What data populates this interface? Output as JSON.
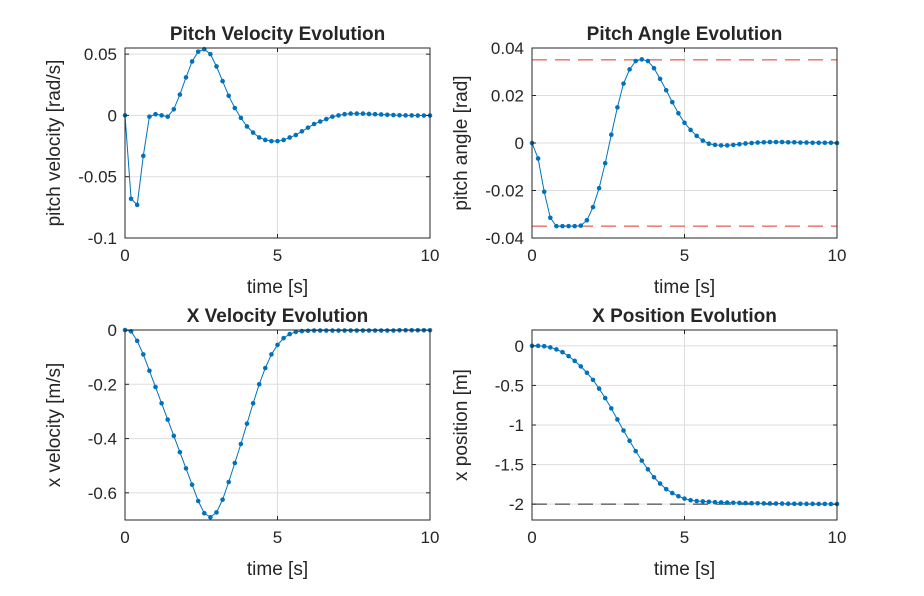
{
  "colors": {
    "series": "#0072bd",
    "limit_red": "#e3342f",
    "limit_black": "#262626"
  },
  "chart_data": [
    {
      "type": "line",
      "title": "Pitch Velocity Evolution",
      "xlabel": "time [s]",
      "ylabel": "pitch velocity [rad/s]",
      "xlim": [
        0,
        10
      ],
      "ylim": [
        -0.1,
        0.055
      ],
      "xticks": [
        0,
        5,
        10
      ],
      "xtick_labels": [
        "0",
        "5",
        "10"
      ],
      "yticks": [
        -0.1,
        -0.05,
        0,
        0.05
      ],
      "ytick_labels": [
        "-0.1",
        "-0.05",
        "0",
        "0.05"
      ],
      "grid": true,
      "series": [
        {
          "marker": "dot",
          "x": [
            0,
            0.2,
            0.4,
            0.6,
            0.8,
            1.0,
            1.2,
            1.4,
            1.6,
            1.8,
            2.0,
            2.2,
            2.4,
            2.6,
            2.8,
            3.0,
            3.2,
            3.4,
            3.6,
            3.8,
            4.0,
            4.2,
            4.4,
            4.6,
            4.8,
            5.0,
            5.2,
            5.4,
            5.6,
            5.8,
            6.0,
            6.2,
            6.4,
            6.6,
            6.8,
            7.0,
            7.2,
            7.4,
            7.6,
            7.8,
            8.0,
            8.2,
            8.4,
            8.6,
            8.8,
            9.0,
            9.2,
            9.4,
            9.6,
            9.8,
            10.0
          ],
          "y": [
            0,
            -0.068,
            -0.073,
            -0.033,
            -0.001,
            0.001,
            0,
            -0.001,
            0.005,
            0.017,
            0.031,
            0.044,
            0.052,
            0.054,
            0.05,
            0.04,
            0.028,
            0.016,
            0.006,
            -0.002,
            -0.009,
            -0.014,
            -0.018,
            -0.02,
            -0.021,
            -0.021,
            -0.02,
            -0.018,
            -0.016,
            -0.013,
            -0.01,
            -0.007,
            -0.005,
            -0.003,
            -0.001,
            0,
            0.001,
            0.0015,
            0.0015,
            0.0015,
            0.0012,
            0.001,
            0.0008,
            0.0005,
            0.0003,
            0.0001,
            0,
            0,
            -0.0001,
            -0.0001,
            -0.0001
          ]
        }
      ],
      "hlines": []
    },
    {
      "type": "line",
      "title": "Pitch Angle Evolution",
      "xlabel": "time [s]",
      "ylabel": "pitch angle [rad]",
      "xlim": [
        0,
        10
      ],
      "ylim": [
        -0.04,
        0.04
      ],
      "xticks": [
        0,
        5,
        10
      ],
      "xtick_labels": [
        "0",
        "5",
        "10"
      ],
      "yticks": [
        -0.04,
        -0.02,
        0,
        0.02,
        0.04
      ],
      "ytick_labels": [
        "-0.04",
        "-0.02",
        "0",
        "0.02",
        "0.04"
      ],
      "grid": true,
      "series": [
        {
          "marker": "dot",
          "x": [
            0,
            0.2,
            0.4,
            0.6,
            0.8,
            1.0,
            1.2,
            1.4,
            1.6,
            1.8,
            2.0,
            2.2,
            2.4,
            2.6,
            2.8,
            3.0,
            3.2,
            3.4,
            3.6,
            3.8,
            4.0,
            4.2,
            4.4,
            4.6,
            4.8,
            5.0,
            5.2,
            5.4,
            5.6,
            5.8,
            6.0,
            6.2,
            6.4,
            6.6,
            6.8,
            7.0,
            7.2,
            7.4,
            7.6,
            7.8,
            8.0,
            8.2,
            8.4,
            8.6,
            8.8,
            9.0,
            9.2,
            9.4,
            9.6,
            9.8,
            10.0
          ],
          "y": [
            0,
            -0.0065,
            -0.0205,
            -0.0315,
            -0.035,
            -0.035,
            -0.035,
            -0.035,
            -0.0348,
            -0.0325,
            -0.027,
            -0.019,
            -0.0085,
            0.0035,
            0.015,
            0.025,
            0.031,
            0.0345,
            0.0352,
            0.0345,
            0.0315,
            0.027,
            0.0222,
            0.0172,
            0.0125,
            0.0085,
            0.0055,
            0.003,
            0.001,
            -0.0003,
            -0.0008,
            -0.001,
            -0.001,
            -0.0008,
            -0.0005,
            -0.0002,
            0,
            0.0002,
            0.0003,
            0.0004,
            0.0004,
            0.0004,
            0.0003,
            0.0003,
            0.0002,
            0.0002,
            0.0001,
            0.0001,
            0.0001,
            0.0001,
            0
          ]
        }
      ],
      "hlines": [
        {
          "y": 0.035,
          "color": "#e3342f"
        },
        {
          "y": -0.035,
          "color": "#e3342f"
        }
      ]
    },
    {
      "type": "line",
      "title": "X Velocity Evolution",
      "xlabel": "time [s]",
      "ylabel": "x velocity [m/s]",
      "xlim": [
        0,
        10
      ],
      "ylim": [
        -0.7,
        0
      ],
      "xticks": [
        0,
        5,
        10
      ],
      "xtick_labels": [
        "0",
        "5",
        "10"
      ],
      "yticks": [
        -0.6,
        -0.4,
        -0.2,
        0
      ],
      "ytick_labels": [
        "-0.6",
        "-0.4",
        "-0.2",
        "0"
      ],
      "grid": true,
      "series": [
        {
          "marker": "dot",
          "x": [
            0,
            0.2,
            0.4,
            0.6,
            0.8,
            1.0,
            1.2,
            1.4,
            1.6,
            1.8,
            2.0,
            2.2,
            2.4,
            2.6,
            2.8,
            3.0,
            3.2,
            3.4,
            3.6,
            3.8,
            4.0,
            4.2,
            4.4,
            4.6,
            4.8,
            5.0,
            5.2,
            5.4,
            5.6,
            5.8,
            6.0,
            6.2,
            6.4,
            6.6,
            6.8,
            7.0,
            7.2,
            7.4,
            7.6,
            7.8,
            8.0,
            8.2,
            8.4,
            8.6,
            8.8,
            9.0,
            9.2,
            9.4,
            9.6,
            9.8,
            10.0
          ],
          "y": [
            0,
            -0.005,
            -0.04,
            -0.09,
            -0.15,
            -0.21,
            -0.27,
            -0.33,
            -0.39,
            -0.45,
            -0.51,
            -0.57,
            -0.63,
            -0.675,
            -0.69,
            -0.672,
            -0.625,
            -0.56,
            -0.49,
            -0.42,
            -0.345,
            -0.27,
            -0.2,
            -0.14,
            -0.09,
            -0.055,
            -0.03,
            -0.015,
            -0.007,
            -0.004,
            -0.003,
            -0.002,
            -0.002,
            -0.002,
            -0.002,
            -0.002,
            -0.002,
            -0.002,
            -0.002,
            -0.002,
            -0.002,
            -0.002,
            -0.002,
            -0.002,
            -0.002,
            -0.001,
            -0.001,
            -0.001,
            -0.001,
            -0.001,
            -0.001
          ]
        }
      ],
      "hlines": []
    },
    {
      "type": "line",
      "title": "X Position Evolution",
      "xlabel": "time [s]",
      "ylabel": "x position [m]",
      "xlim": [
        0,
        10
      ],
      "ylim": [
        -2.2,
        0.2
      ],
      "xticks": [
        0,
        5,
        10
      ],
      "xtick_labels": [
        "0",
        "5",
        "10"
      ],
      "yticks": [
        -2,
        -1.5,
        -1,
        -0.5,
        0
      ],
      "ytick_labels": [
        "-2",
        "-1.5",
        "-1",
        "-0.5",
        "0"
      ],
      "grid": true,
      "series": [
        {
          "marker": "dot",
          "x": [
            0,
            0.2,
            0.4,
            0.6,
            0.8,
            1.0,
            1.2,
            1.4,
            1.6,
            1.8,
            2.0,
            2.2,
            2.4,
            2.6,
            2.8,
            3.0,
            3.2,
            3.4,
            3.6,
            3.8,
            4.0,
            4.2,
            4.4,
            4.6,
            4.8,
            5.0,
            5.2,
            5.4,
            5.6,
            5.8,
            6.0,
            6.2,
            6.4,
            6.6,
            6.8,
            7.0,
            7.2,
            7.4,
            7.6,
            7.8,
            8.0,
            8.2,
            8.4,
            8.6,
            8.8,
            9.0,
            9.2,
            9.4,
            9.6,
            9.8,
            10.0
          ],
          "y": [
            0,
            0,
            -0.005,
            -0.02,
            -0.045,
            -0.08,
            -0.13,
            -0.19,
            -0.26,
            -0.34,
            -0.43,
            -0.54,
            -0.66,
            -0.79,
            -0.93,
            -1.07,
            -1.2,
            -1.33,
            -1.45,
            -1.56,
            -1.66,
            -1.74,
            -1.81,
            -1.86,
            -1.9,
            -1.93,
            -1.95,
            -1.96,
            -1.965,
            -1.97,
            -1.975,
            -1.978,
            -1.98,
            -1.982,
            -1.984,
            -1.986,
            -1.988,
            -1.989,
            -1.99,
            -1.991,
            -1.992,
            -1.993,
            -1.994,
            -1.995,
            -1.995,
            -1.996,
            -1.996,
            -1.997,
            -1.997,
            -1.998,
            -1.998
          ]
        }
      ],
      "hlines": [
        {
          "y": -2,
          "color": "#262626"
        }
      ]
    }
  ]
}
